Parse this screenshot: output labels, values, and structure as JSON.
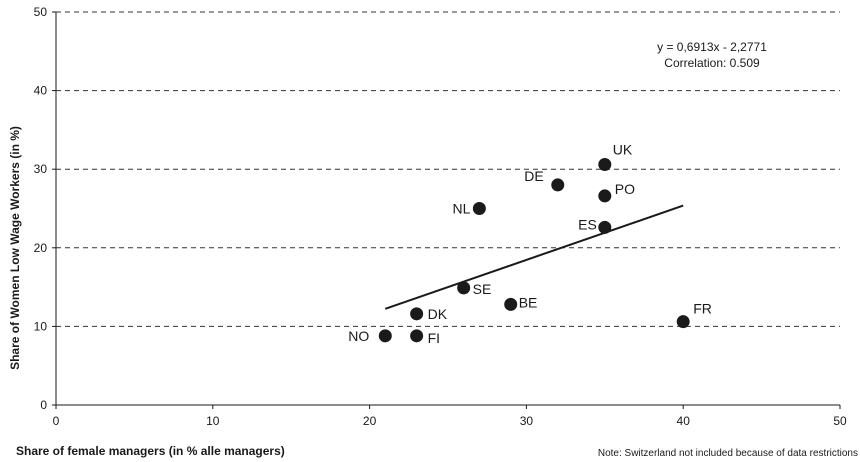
{
  "chart_data": {
    "type": "scatter",
    "title": "",
    "xlabel": "Share of female managers (in % alle managers)",
    "ylabel": "Share of Women Low Wage Workers (in %)",
    "xlim": [
      0,
      50
    ],
    "ylim": [
      0,
      50
    ],
    "x_ticks": [
      0,
      10,
      20,
      30,
      40,
      50
    ],
    "y_ticks": [
      0,
      10,
      20,
      30,
      40,
      50
    ],
    "grid": "horizontal-dashed",
    "marker_color": "#1a1a1a",
    "points": [
      {
        "label": "UK",
        "x": 35,
        "y": 30.6
      },
      {
        "label": "DE",
        "x": 32,
        "y": 28.0
      },
      {
        "label": "PO",
        "x": 35,
        "y": 26.6
      },
      {
        "label": "NL",
        "x": 27,
        "y": 25.0
      },
      {
        "label": "ES",
        "x": 35,
        "y": 22.6
      },
      {
        "label": "SE",
        "x": 26,
        "y": 14.9
      },
      {
        "label": "BE",
        "x": 29,
        "y": 12.8
      },
      {
        "label": "DK",
        "x": 23,
        "y": 11.6
      },
      {
        "label": "FR",
        "x": 40,
        "y": 10.6
      },
      {
        "label": "NO",
        "x": 21,
        "y": 8.8
      },
      {
        "label": "FI",
        "x": 23,
        "y": 8.8
      }
    ],
    "trendline": {
      "slope": 0.6913,
      "intercept": -2.2771,
      "x_range": [
        21,
        40
      ]
    },
    "annotations": {
      "equation": "y = 0,6913x - 2,2771",
      "correlation": "Correlation: 0.509"
    },
    "note": "Note: Switzerland not included because of data restrictions"
  }
}
